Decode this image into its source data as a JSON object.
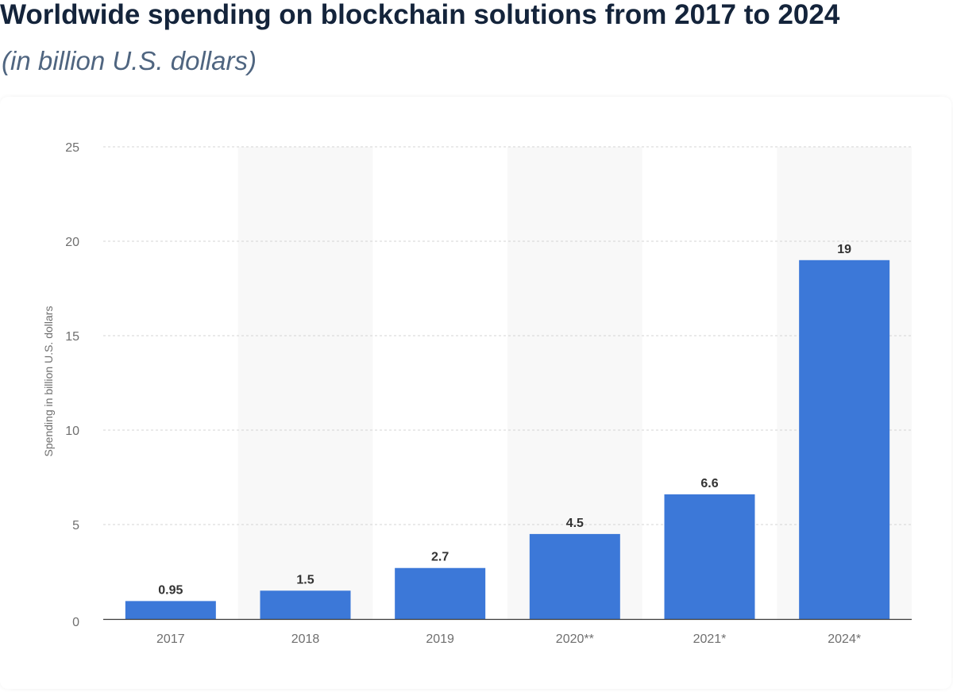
{
  "title": "Worldwide spending on blockchain solutions from 2017 to 2024",
  "subtitle": "(in billion U.S. dollars)",
  "colors": {
    "bar": "#3c78d8",
    "band": "#f8f8f8",
    "grid": "#d4d4d4",
    "title": "#14243b",
    "subtitle": "#4f6580"
  },
  "chart_data": {
    "type": "bar",
    "title": "Worldwide spending on blockchain solutions from 2017 to 2024",
    "subtitle": "(in billion U.S. dollars)",
    "xlabel": "",
    "ylabel": "Spending in billion U.S. dollars",
    "categories": [
      "2017",
      "2018",
      "2019",
      "2020**",
      "2021*",
      "2024*"
    ],
    "values": [
      0.95,
      1.5,
      2.7,
      4.5,
      6.6,
      19
    ],
    "value_labels": [
      "0.95",
      "1.5",
      "2.7",
      "4.5",
      "6.6",
      "19"
    ],
    "ylim": [
      0,
      25
    ],
    "yticks": [
      0,
      5,
      10,
      15,
      20,
      25
    ],
    "grid": true,
    "legend": "none"
  }
}
